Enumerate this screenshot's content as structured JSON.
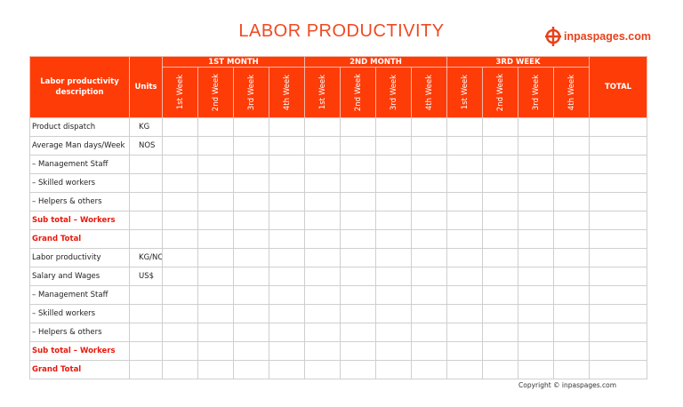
{
  "header": {
    "title": "LABOR PRODUCTIVITY",
    "logo": "inpaspages.com"
  },
  "table": {
    "description_header": "Labor productivity description",
    "units_header": "Units",
    "groups": [
      {
        "name": "1ST MONTH",
        "weeks": [
          "1st Week",
          "2nd Week",
          "3rd Week",
          "4th Week"
        ]
      },
      {
        "name": "2ND MONTH",
        "weeks": [
          "1st Week",
          "2nd Week",
          "3rd Week",
          "4th Week"
        ]
      },
      {
        "name": "3RD WEEK",
        "weeks": [
          "1st Week",
          "2nd Week",
          "3rd Week",
          "4th Week"
        ]
      }
    ],
    "total_header": "TOTAL",
    "rows": [
      {
        "description": "Product dispatch",
        "units": "KG"
      },
      {
        "description": "Average Man days/Week",
        "units": "NOS"
      },
      {
        "description": " – Management Staff"
      },
      {
        "description": " – Skilled workers"
      },
      {
        "description": " – Helpers & others"
      },
      {
        "description": "Sub total – Workers",
        "highlight": true
      },
      {
        "description": "Grand Total",
        "highlight": true
      },
      {
        "description": "Labor productivity",
        "units": "KG/NOS"
      },
      {
        "description": "Salary and Wages",
        "units": "US$"
      },
      {
        "description": " – Management Staff"
      },
      {
        "description": " – Skilled workers"
      },
      {
        "description": " – Helpers & others"
      },
      {
        "description": "Sub total – Workers",
        "highlight": true
      },
      {
        "description": "Grand Total",
        "highlight": true
      }
    ]
  },
  "footer": {
    "copyright": "Copyright © inpaspages.com"
  }
}
